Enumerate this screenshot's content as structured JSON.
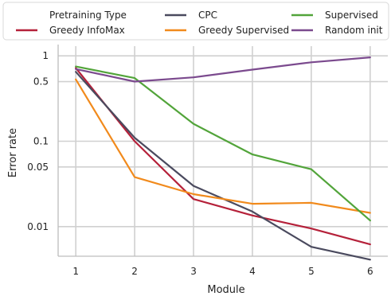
{
  "chart_data": {
    "type": "line",
    "xlabel": "Module",
    "ylabel": "Error rate",
    "x": [
      1,
      2,
      3,
      4,
      5,
      6
    ],
    "xlim": [
      0.7,
      6.3
    ],
    "y_scale": "log",
    "ylim": [
      0.0045,
      1.3
    ],
    "y_ticks": [
      {
        "value": 1,
        "label": "1"
      },
      {
        "value": 0.5,
        "label": "0.5"
      },
      {
        "value": 0.1,
        "label": "0.1"
      },
      {
        "value": 0.05,
        "label": "0.05"
      },
      {
        "value": 0.01,
        "label": "0.01"
      }
    ],
    "x_ticks": [
      {
        "value": 1,
        "label": "1"
      },
      {
        "value": 2,
        "label": "2"
      },
      {
        "value": 3,
        "label": "3"
      },
      {
        "value": 4,
        "label": "4"
      },
      {
        "value": 5,
        "label": "5"
      },
      {
        "value": 6,
        "label": "6"
      }
    ],
    "grid": true,
    "legend": {
      "title": "Pretraining Type",
      "placement": "top"
    },
    "series": [
      {
        "name": "Greedy InfoMax",
        "color": "#b5213a",
        "values": [
          0.72,
          0.1,
          0.021,
          0.0135,
          0.0095,
          0.0062
        ]
      },
      {
        "name": "CPC",
        "color": "#4a4a5e",
        "values": [
          0.65,
          0.11,
          0.03,
          0.015,
          0.0058,
          0.0041
        ]
      },
      {
        "name": "Greedy Supervised",
        "color": "#f18a1c",
        "values": [
          0.53,
          0.038,
          0.024,
          0.0185,
          0.019,
          0.0145
        ]
      },
      {
        "name": "Supervised",
        "color": "#52a43a",
        "values": [
          0.75,
          0.55,
          0.16,
          0.07,
          0.047,
          0.0118
        ]
      },
      {
        "name": "Random init",
        "color": "#7b4a8e",
        "values": [
          0.7,
          0.5,
          0.56,
          0.69,
          0.84,
          0.96
        ]
      }
    ]
  }
}
